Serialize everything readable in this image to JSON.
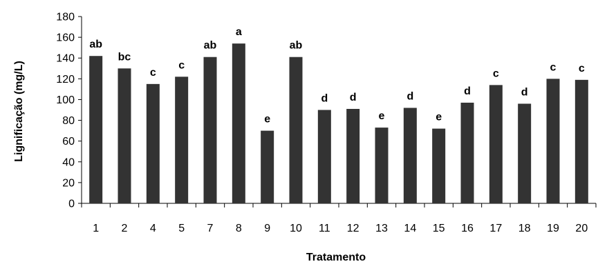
{
  "chart_data": {
    "type": "bar",
    "title": "",
    "xlabel": "Tratamento",
    "ylabel": "Lignificação (mg/L)",
    "ylim": [
      0,
      180
    ],
    "yticks": [
      0,
      20,
      40,
      60,
      80,
      100,
      120,
      140,
      160,
      180
    ],
    "categories": [
      "1",
      "2",
      "4",
      "5",
      "7",
      "8",
      "9",
      "10",
      "11",
      "12",
      "13",
      "14",
      "15",
      "16",
      "17",
      "18",
      "19",
      "20"
    ],
    "values": [
      142,
      130,
      115,
      122,
      141,
      154,
      70,
      141,
      90,
      91,
      73,
      92,
      72,
      97,
      114,
      96,
      120,
      119
    ],
    "letters": [
      "ab",
      "bc",
      "c",
      "c",
      "ab",
      "a",
      "e",
      "ab",
      "d",
      "d",
      "e",
      "d",
      "e",
      "d",
      "c",
      "d",
      "c",
      "c"
    ],
    "bar_color": "#333333",
    "grid": false,
    "legend": "none"
  }
}
